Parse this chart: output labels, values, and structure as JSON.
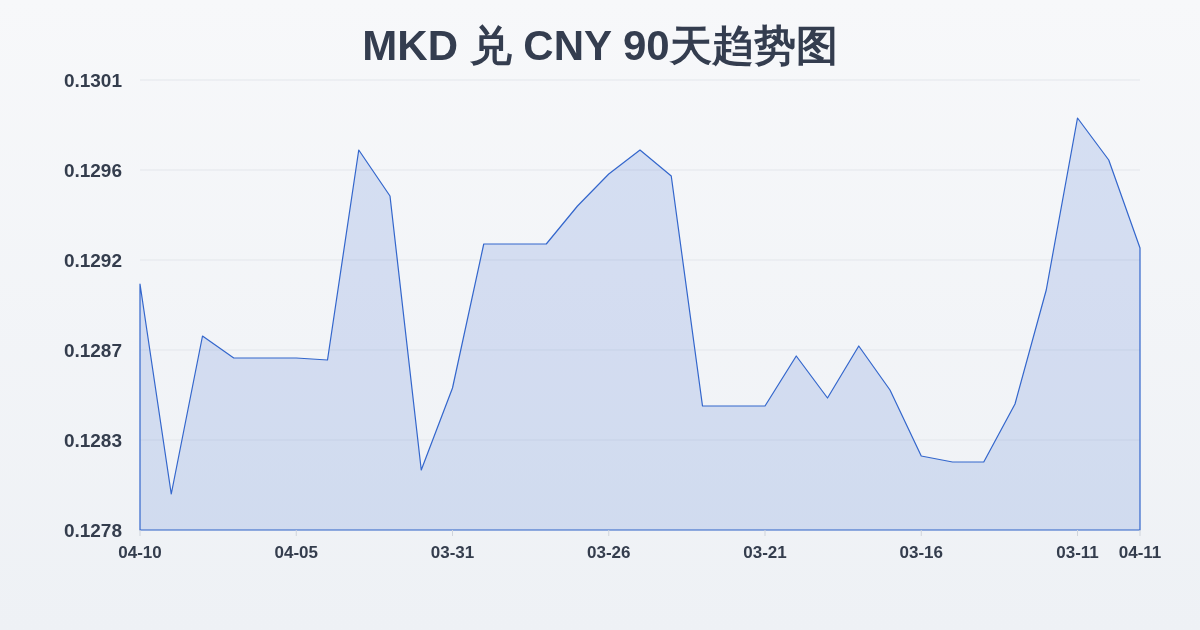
{
  "chart_data": {
    "type": "area",
    "title": "MKD 兑 CNY 90天趋势图",
    "categories": [
      "04-10",
      null,
      null,
      null,
      null,
      "04-05",
      null,
      null,
      null,
      null,
      "03-31",
      null,
      null,
      null,
      null,
      "03-26",
      null,
      null,
      null,
      null,
      "03-21",
      null,
      null,
      null,
      null,
      "03-16",
      null,
      null,
      null,
      null,
      "03-11",
      null,
      "04-11"
    ],
    "series": [
      {
        "color": "#3366cc",
        "values": [
          0.12903,
          0.12798,
          0.12877,
          0.12866,
          0.12866,
          0.12866,
          0.12865,
          0.1297,
          0.12947,
          0.1281,
          0.12851,
          0.12923,
          0.12923,
          0.12923,
          0.12942,
          0.12958,
          0.1297,
          0.12957,
          0.12842,
          0.12842,
          0.12842,
          0.12867,
          0.12846,
          0.12872,
          0.1285,
          0.12817,
          0.12814,
          0.12814,
          0.12843,
          0.129,
          0.12986,
          0.12965,
          0.12921
        ]
      }
    ],
    "ylim": [
      0.1278,
      0.13005
    ],
    "yticks": [
      {
        "value": 0.1278,
        "label": "0.1278"
      },
      {
        "value": 0.12825,
        "label": "0.1283"
      },
      {
        "value": 0.1287,
        "label": "0.1287"
      },
      {
        "value": 0.12915,
        "label": "0.1292"
      },
      {
        "value": 0.1296,
        "label": "0.1296"
      },
      {
        "value": 0.13005,
        "label": "0.1301"
      }
    ],
    "grid": "y"
  }
}
